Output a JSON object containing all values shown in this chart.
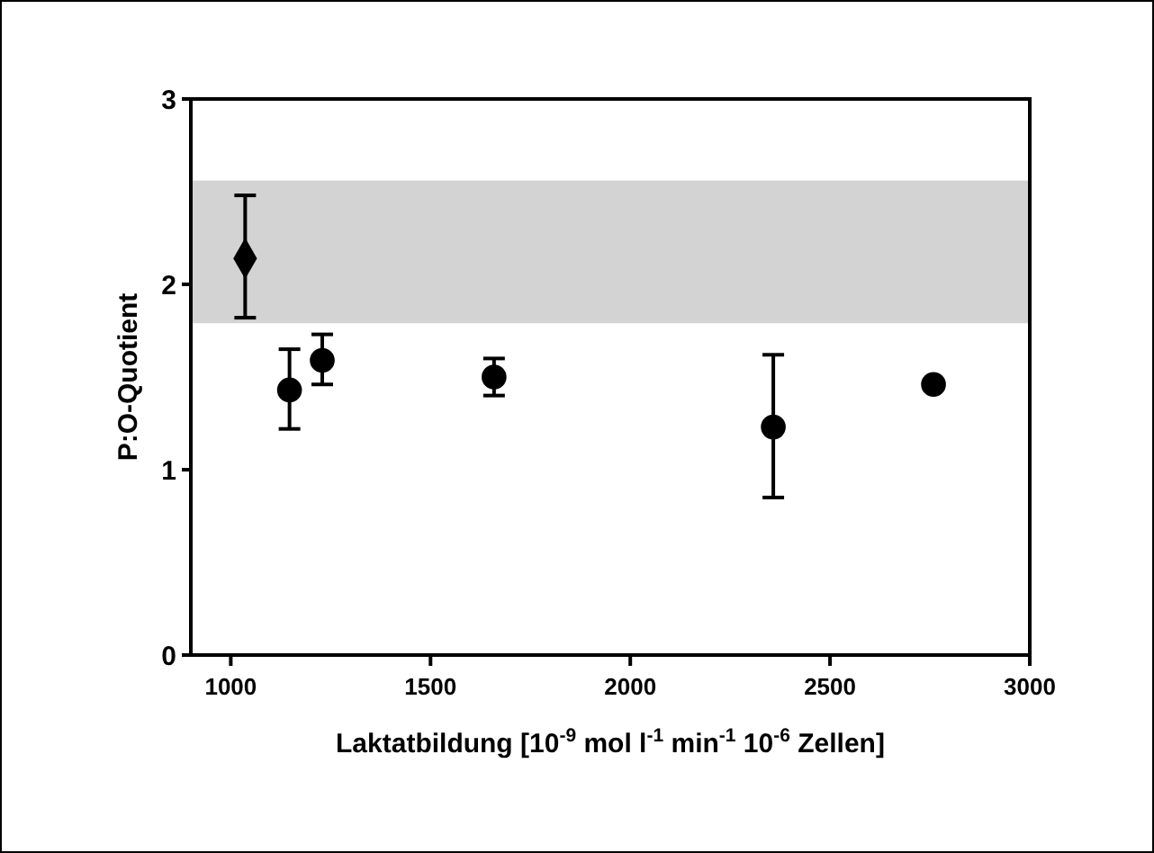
{
  "chart_data": {
    "type": "scatter",
    "xlabel": "Laktatbildung [10$^{-9}$ mol l$^{-1}$ min$^{-1}$ 10$^{-6}$ Zellen]",
    "ylabel": "P:O-Quotient",
    "xlim": [
      900,
      3000
    ],
    "xticks": [
      1000,
      1500,
      2000,
      2500,
      3000
    ],
    "ylim": [
      0,
      3
    ],
    "yticks": [
      0,
      1,
      2,
      3
    ],
    "bands": [
      {
        "axis": "y",
        "from": 1.79,
        "to": 2.56,
        "color": "#d3d3d3"
      }
    ],
    "series": [
      {
        "color": "#000000",
        "marker": "diamond",
        "x": [
          1036
        ],
        "values": [
          2.14
        ],
        "errors": [
          [
            1.82,
            2.48
          ]
        ]
      },
      {
        "color": "#000000",
        "marker": "circle",
        "x": [
          1147,
          1229,
          1659,
          2358,
          2759
        ],
        "values": [
          1.43,
          1.59,
          1.5,
          1.23,
          1.46
        ],
        "errors": [
          [
            1.22,
            1.65
          ],
          [
            1.46,
            1.73
          ],
          [
            1.4,
            1.6
          ],
          [
            0.85,
            1.62
          ],
          null
        ]
      }
    ]
  }
}
